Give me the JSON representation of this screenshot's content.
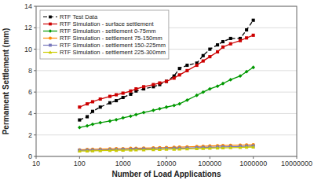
{
  "chart_data": {
    "type": "line",
    "xlabel": "Number of Load Applications",
    "ylabel": "Permament Settlement (mm)",
    "log": "x",
    "xlim": [
      10,
      10000000
    ],
    "xticks": [
      10,
      100,
      1000,
      10000,
      100000,
      1000000,
      10000000
    ],
    "ylim": [
      0,
      14
    ],
    "yticks": [
      0,
      2,
      4,
      6,
      8,
      10,
      12,
      14
    ],
    "grid": "y",
    "legend": "upper left",
    "x": [
      100,
      150,
      200,
      300,
      500,
      700,
      1000,
      1500,
      2000,
      3000,
      5000,
      7000,
      10000,
      15000,
      20000,
      30000,
      50000,
      70000,
      100000,
      150000,
      200000,
      300000,
      500000,
      700000,
      1000000
    ],
    "series": [
      {
        "name": "RTF Test Data",
        "color": "black",
        "marker": "square",
        "line_style": "dashed",
        "values": [
          3.4,
          3.7,
          4.2,
          4.6,
          5.0,
          5.2,
          5.5,
          5.8,
          6.1,
          6.3,
          6.5,
          6.7,
          7.0,
          7.5,
          8.2,
          8.5,
          8.7,
          9.4,
          10.0,
          10.4,
          10.7,
          11.0,
          11.0,
          11.8,
          12.7
        ]
      },
      {
        "name": "RTF Simulation - surface settlement",
        "color": "#cc0000",
        "marker": "square",
        "line_style": "solid",
        "values": [
          4.6,
          4.9,
          5.1,
          5.35,
          5.6,
          5.75,
          5.9,
          6.1,
          6.3,
          6.5,
          6.7,
          6.85,
          7.0,
          7.3,
          7.6,
          8.0,
          8.5,
          8.9,
          9.3,
          9.75,
          10.2,
          10.5,
          10.8,
          11.05,
          11.3
        ]
      },
      {
        "name": "RTF Simulation - settlement 0-75mm",
        "color": "#009900",
        "marker": "diamond",
        "line_style": "solid",
        "values": [
          2.7,
          2.85,
          3.0,
          3.15,
          3.3,
          3.42,
          3.6,
          3.75,
          3.9,
          4.1,
          4.3,
          4.45,
          4.6,
          4.75,
          4.9,
          5.25,
          5.7,
          6.0,
          6.3,
          6.55,
          6.8,
          7.15,
          7.5,
          7.9,
          8.3
        ]
      },
      {
        "name": "RTF Simulation - settlement 75-150mm",
        "color": "#ff8800",
        "marker": "circle",
        "line_style": "solid",
        "values": [
          0.62,
          0.64,
          0.66,
          0.68,
          0.7,
          0.72,
          0.73,
          0.75,
          0.76,
          0.78,
          0.8,
          0.82,
          0.83,
          0.85,
          0.87,
          0.89,
          0.92,
          0.95,
          0.97,
          0.99,
          1.01,
          1.03,
          1.05,
          1.07,
          1.09
        ]
      },
      {
        "name": "RTF Simulation - settlement 150-225mm",
        "color": "#7777bb",
        "marker": "square",
        "line_style": "solid",
        "values": [
          0.56,
          0.57,
          0.58,
          0.6,
          0.62,
          0.63,
          0.65,
          0.66,
          0.68,
          0.69,
          0.71,
          0.72,
          0.74,
          0.75,
          0.76,
          0.78,
          0.81,
          0.83,
          0.85,
          0.87,
          0.89,
          0.91,
          0.93,
          0.95,
          0.97
        ]
      },
      {
        "name": "RTF Simulation - settlement 225-300mm",
        "color": "#cccc00",
        "marker": "triangle",
        "line_style": "solid",
        "values": [
          0.5,
          0.51,
          0.52,
          0.54,
          0.56,
          0.57,
          0.58,
          0.6,
          0.61,
          0.62,
          0.64,
          0.65,
          0.67,
          0.68,
          0.69,
          0.71,
          0.73,
          0.75,
          0.77,
          0.79,
          0.8,
          0.82,
          0.84,
          0.86,
          0.88
        ]
      }
    ]
  }
}
